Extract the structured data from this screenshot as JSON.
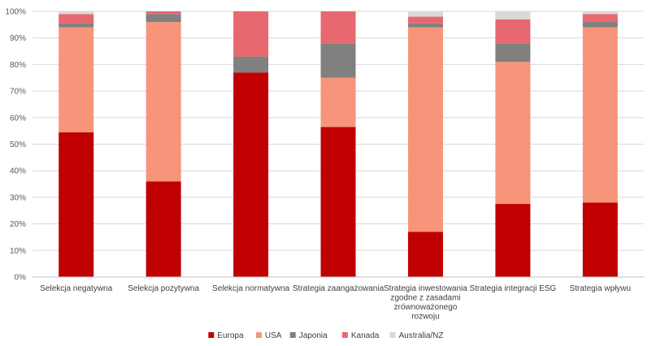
{
  "chart_data": {
    "type": "bar",
    "stacked": true,
    "percent": true,
    "categories": [
      [
        "Selekcja negatywna"
      ],
      [
        "Selekcja pozytywna"
      ],
      [
        "Selekcja normatywna"
      ],
      [
        "Strategia zaangażowania"
      ],
      [
        "Strategia inwestowania",
        "zgodne z zasadami",
        "zrównoważonego",
        "rozwoju"
      ],
      [
        "Strategia integracji ESG"
      ],
      [
        "Strategia wpływu"
      ]
    ],
    "series": [
      {
        "name": "Europa",
        "color": "#c00000",
        "values": [
          54.5,
          36,
          77,
          56.5,
          17,
          27.5,
          28
        ]
      },
      {
        "name": "USA",
        "color": "#f79479",
        "values": [
          39.5,
          60,
          0,
          18.5,
          77,
          53.5,
          66
        ]
      },
      {
        "name": "Japonia",
        "color": "#808080",
        "values": [
          1.5,
          3,
          6,
          13,
          1.5,
          7,
          2
        ]
      },
      {
        "name": "Kanada",
        "color": "#e8686f",
        "values": [
          3.5,
          1,
          17,
          12,
          2.5,
          9,
          3
        ]
      },
      {
        "name": "Australia/NZ",
        "color": "#d9d9d9",
        "values": [
          1,
          0,
          0,
          0,
          2,
          3,
          1
        ]
      }
    ],
    "ylim": [
      0,
      100
    ],
    "yticks": [
      "0%",
      "10%",
      "20%",
      "30%",
      "40%",
      "50%",
      "60%",
      "70%",
      "80%",
      "90%",
      "100%"
    ],
    "grid": true,
    "legend_position": "bottom"
  }
}
